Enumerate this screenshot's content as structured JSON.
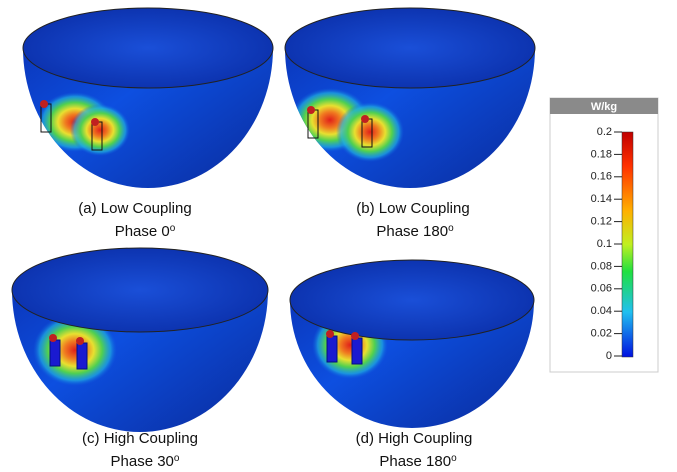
{
  "panels": [
    {
      "caption": "(a)  Low Coupling",
      "phase": "Phase 0",
      "sup": "o"
    },
    {
      "caption": "(b) Low Coupling",
      "phase": "Phase 180",
      "sup": "o"
    },
    {
      "caption": "(c) High Coupling",
      "phase": "Phase 30",
      "sup": "o"
    },
    {
      "caption": "(d) High Coupling",
      "phase": "Phase 180",
      "sup": "o"
    }
  ],
  "colorbar": {
    "title": "W/kg",
    "range": [
      0,
      0.2
    ],
    "ticks": [
      0.2,
      0.18,
      0.16,
      0.14,
      0.12,
      0.1,
      0.08,
      0.06,
      0.04,
      0.02,
      0
    ]
  }
}
